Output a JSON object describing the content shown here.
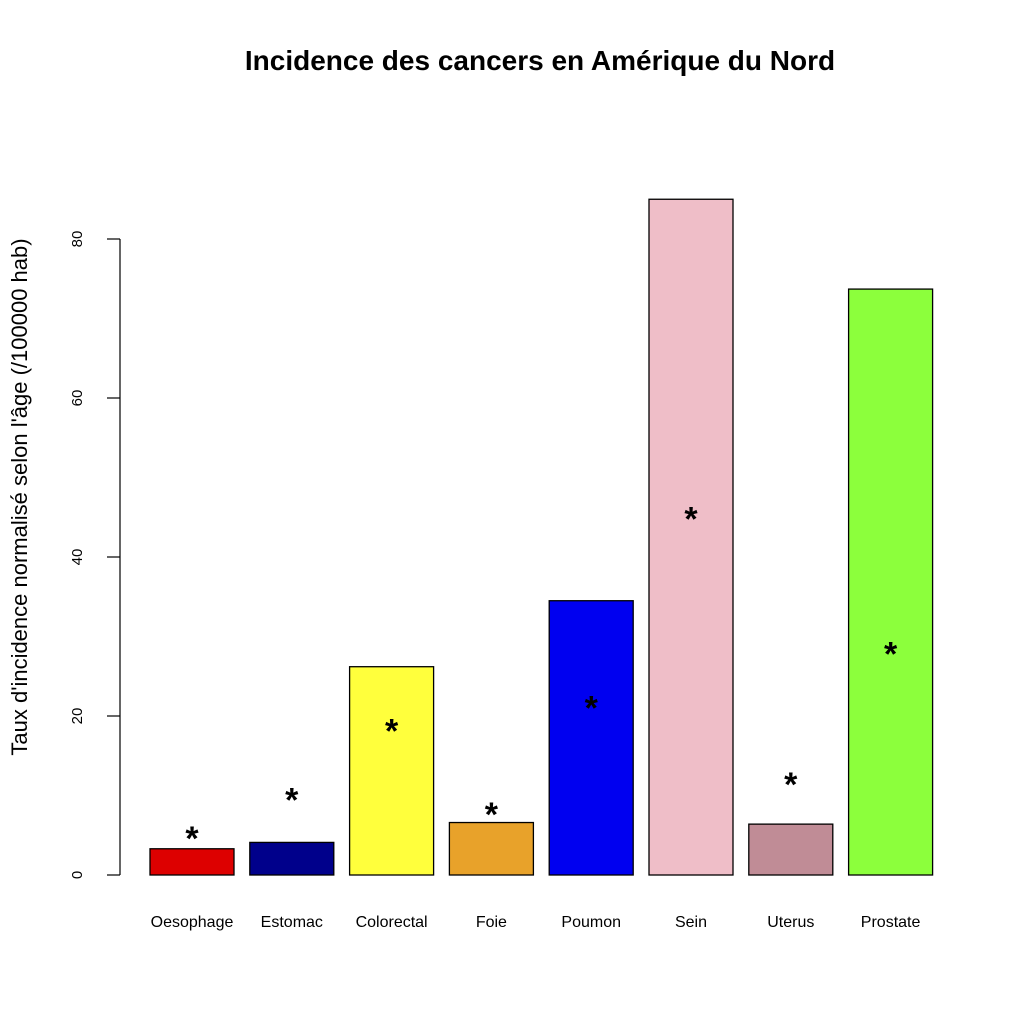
{
  "chart_data": {
    "type": "bar",
    "title": "Incidence des cancers en Amérique du Nord",
    "xlabel": "",
    "ylabel": "Taux d'incidence normalisé selon l'âge (/100000 hab)",
    "categories": [
      "Oesophage",
      "Estomac",
      "Colorectal",
      "Foie",
      "Poumon",
      "Sein",
      "Uterus",
      "Prostate"
    ],
    "values": [
      3.3,
      4.1,
      26.2,
      6.6,
      34.5,
      85.0,
      6.4,
      73.7
    ],
    "marker_values": [
      5.8,
      10.6,
      19.3,
      8.8,
      22.2,
      46.0,
      12.6,
      29.0
    ],
    "marker_symbol": "*",
    "colors": [
      "#dd0000",
      "#00008b",
      "#ffff3c",
      "#e8a22a",
      "#0000f0",
      "#efbec8",
      "#c08c96",
      "#8cff3c"
    ],
    "yticks": [
      0,
      20,
      40,
      60,
      80
    ],
    "ylim": [
      0,
      85
    ],
    "grid": false,
    "legend": "none"
  }
}
